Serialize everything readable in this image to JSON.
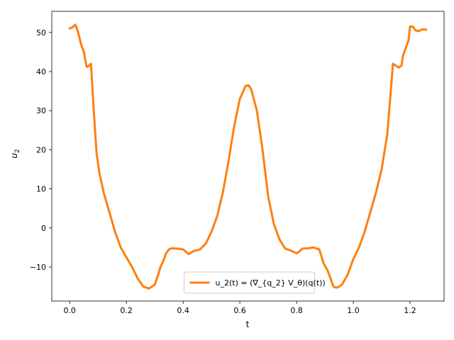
{
  "chart_data": {
    "type": "line",
    "title": "",
    "xlabel": "t",
    "ylabel_main": "u",
    "ylabel_sub": "2",
    "xlim": [
      -0.063,
      1.32
    ],
    "ylim": [
      -18.7,
      55.4
    ],
    "xticks": [
      0.0,
      0.2,
      0.4,
      0.6,
      0.8,
      1.0,
      1.2
    ],
    "xtick_labels": [
      "0.0",
      "0.2",
      "0.4",
      "0.6",
      "0.8",
      "1.0",
      "1.2"
    ],
    "yticks": [
      -10,
      0,
      10,
      20,
      30,
      40,
      50
    ],
    "ytick_labels": [
      "−10",
      "0",
      "10",
      "20",
      "30",
      "40",
      "50"
    ],
    "grid": false,
    "legend_position": "lower-center",
    "series": [
      {
        "name": "u_2(t) = (∇_{q_2} V_θ)(q(t))",
        "color": "#ff7f0e",
        "x": [
          0.0,
          0.01,
          0.02,
          0.03,
          0.04,
          0.05,
          0.06,
          0.065,
          0.075,
          0.085,
          0.095,
          0.105,
          0.12,
          0.14,
          0.16,
          0.18,
          0.2,
          0.22,
          0.24,
          0.26,
          0.28,
          0.3,
          0.31,
          0.32,
          0.33,
          0.34,
          0.35,
          0.36,
          0.38,
          0.4,
          0.42,
          0.44,
          0.45,
          0.46,
          0.48,
          0.5,
          0.52,
          0.54,
          0.56,
          0.58,
          0.6,
          0.62,
          0.63,
          0.64,
          0.66,
          0.68,
          0.7,
          0.72,
          0.74,
          0.76,
          0.78,
          0.8,
          0.81,
          0.82,
          0.84,
          0.86,
          0.88,
          0.895,
          0.91,
          0.92,
          0.93,
          0.94,
          0.95,
          0.96,
          0.98,
          1.0,
          1.02,
          1.04,
          1.06,
          1.08,
          1.1,
          1.12,
          1.14,
          1.16,
          1.17,
          1.175,
          1.185,
          1.195,
          1.2,
          1.21,
          1.22,
          1.23,
          1.24,
          1.25,
          1.257
        ],
        "y": [
          51.0,
          51.3,
          52.0,
          50.0,
          47.0,
          45.0,
          41.2,
          41.3,
          42.0,
          30.0,
          19.0,
          14.0,
          9.0,
          4.0,
          -1.0,
          -5.0,
          -7.5,
          -10.0,
          -13.0,
          -15.0,
          -15.5,
          -14.5,
          -12.5,
          -10.0,
          -8.5,
          -6.5,
          -5.5,
          -5.2,
          -5.3,
          -5.5,
          -6.7,
          -5.8,
          -5.7,
          -5.5,
          -4.0,
          -1.0,
          3.0,
          9.0,
          17.0,
          26.0,
          33.0,
          36.3,
          36.5,
          35.5,
          30.0,
          20.0,
          8.0,
          1.0,
          -3.0,
          -5.3,
          -5.8,
          -6.5,
          -6.0,
          -5.3,
          -5.2,
          -5.0,
          -5.5,
          -9.0,
          -11.0,
          -13.0,
          -15.0,
          -15.3,
          -15.0,
          -14.5,
          -12.0,
          -8.0,
          -5.0,
          -1.0,
          4.0,
          9.0,
          15.0,
          24.0,
          42.0,
          41.0,
          41.5,
          44.0,
          46.0,
          48.0,
          51.5,
          51.5,
          50.5,
          50.3,
          50.7,
          50.8,
          50.7
        ]
      }
    ]
  }
}
